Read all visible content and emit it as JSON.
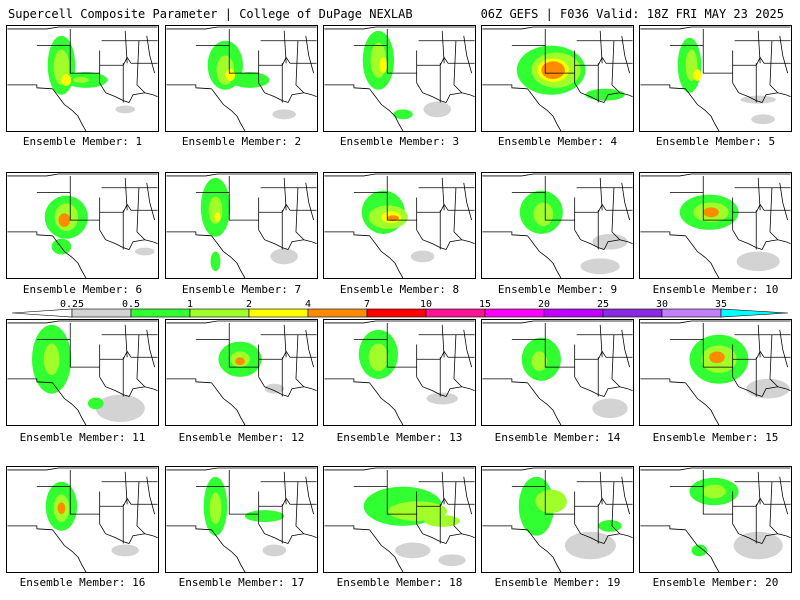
{
  "header": {
    "title_left": "Supercell Composite Parameter | College of DuPage NEXLAB",
    "title_right": "06Z GEFS | F036 Valid: 18Z FRI MAY 23 2025"
  },
  "colorbar": {
    "ticks": [
      "0.25",
      "0.5",
      "1",
      "2",
      "4",
      "7",
      "10",
      "15",
      "20",
      "25",
      "30",
      "35"
    ],
    "colors": [
      "#d3d3d3",
      "#32ff32",
      "#a0ff28",
      "#ffff00",
      "#ff8c00",
      "#ff0000",
      "#ff1493",
      "#ff00ff",
      "#c000ff",
      "#8a2be2",
      "#c080ff",
      "#00ffff"
    ]
  },
  "panels": [
    {
      "label": "Ensemble Member: 1"
    },
    {
      "label": "Ensemble Member: 2"
    },
    {
      "label": "Ensemble Member: 3"
    },
    {
      "label": "Ensemble Member: 4"
    },
    {
      "label": "Ensemble Member: 5"
    },
    {
      "label": "Ensemble Member: 6"
    },
    {
      "label": "Ensemble Member: 7"
    },
    {
      "label": "Ensemble Member: 8"
    },
    {
      "label": "Ensemble Member: 9"
    },
    {
      "label": "Ensemble Member: 10"
    },
    {
      "label": "Ensemble Member: 11"
    },
    {
      "label": "Ensemble Member: 12"
    },
    {
      "label": "Ensemble Member: 13"
    },
    {
      "label": "Ensemble Member: 14"
    },
    {
      "label": "Ensemble Member: 15"
    },
    {
      "label": "Ensemble Member: 16"
    },
    {
      "label": "Ensemble Member: 17"
    },
    {
      "label": "Ensemble Member: 18"
    },
    {
      "label": "Ensemble Member: 19"
    },
    {
      "label": "Ensemble Member: 20"
    }
  ]
}
